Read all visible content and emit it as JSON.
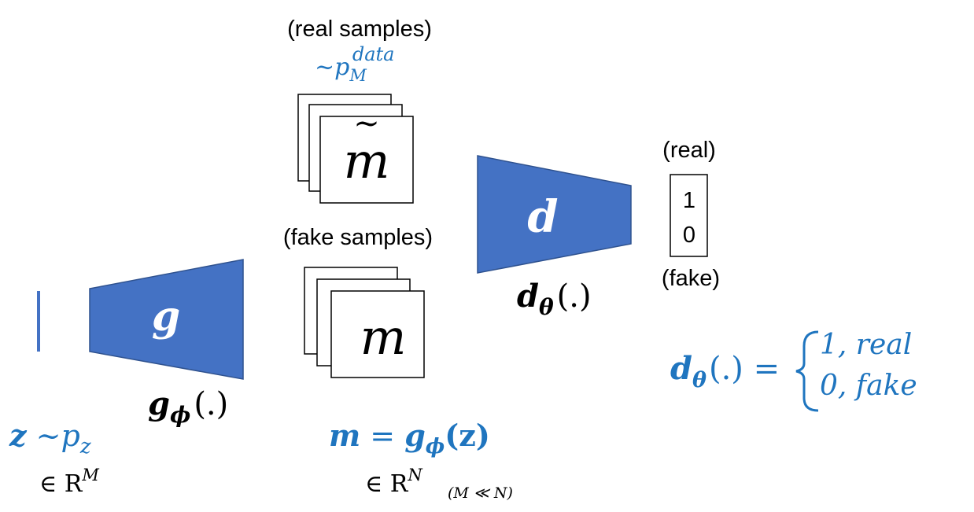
{
  "colors": {
    "blue_fill": "#4472C4",
    "blue_text": "#1F75BF",
    "black": "#000000"
  },
  "generator": {
    "symbol": "g",
    "func_symbol": "g",
    "func_sub": "ϕ",
    "func_arg": "(.)"
  },
  "discriminator": {
    "symbol": "d",
    "func_symbol": "d",
    "func_sub": "θ",
    "func_arg": "(.)"
  },
  "real_samples": {
    "label": "(real samples)",
    "dist_prefix": "~p",
    "dist_sub": "M",
    "dist_sup": "data",
    "symbol": "m",
    "tilde": "~"
  },
  "fake_samples": {
    "label": "(fake samples)",
    "symbol": "m"
  },
  "output": {
    "real_label": "(real)",
    "fake_label": "(fake)",
    "value_top": "1",
    "value_bottom": "0"
  },
  "latent": {
    "z": "z",
    "dist": " ~p",
    "dist_sub": "z",
    "space_in": "∈ R",
    "space_sup": "M"
  },
  "mapping": {
    "m": "m",
    "eq": " =  ",
    "g": "g",
    "g_sub": "ϕ",
    "arg": "(z)",
    "space_in": "∈ R",
    "space_sup": "N",
    "note": "(M ≪ N)"
  },
  "decision": {
    "d": "d",
    "d_sub": "θ",
    "arg": "(.)",
    "eq": " =",
    "case1": "1, real",
    "case2": "0, fake"
  }
}
